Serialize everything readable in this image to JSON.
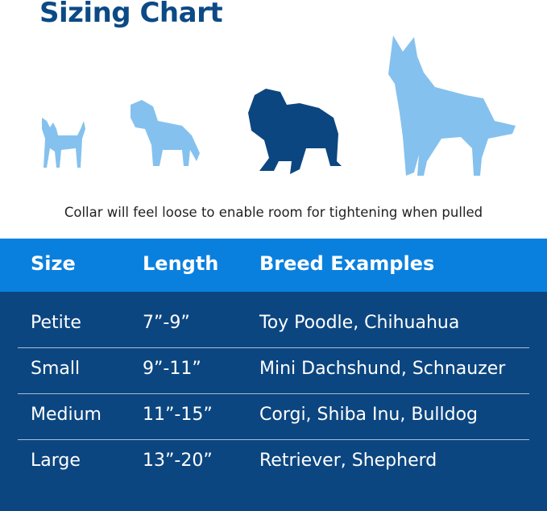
{
  "title": "Sizing Chart",
  "note": "Collar will feel loose to enable room for tightening when pulled",
  "colors": {
    "title": "#0c4a85",
    "header_bg": "#0a80de",
    "body_bg": "#0c4680",
    "dog_light": "#85c1ee",
    "dog_dark": "#0c4680"
  },
  "table": {
    "headers": [
      "Size",
      "Length",
      "Breed Examples"
    ],
    "rows": [
      [
        "Petite",
        "7”-9”",
        "Toy Poodle, Chihuahua"
      ],
      [
        "Small",
        "9”-11”",
        "Mini Dachshund, Schnauzer"
      ],
      [
        "Medium",
        "11”-15”",
        "Corgi, Shiba Inu, Bulldog"
      ],
      [
        "Large",
        "13”-20”",
        "Retriever, Shepherd"
      ]
    ]
  }
}
